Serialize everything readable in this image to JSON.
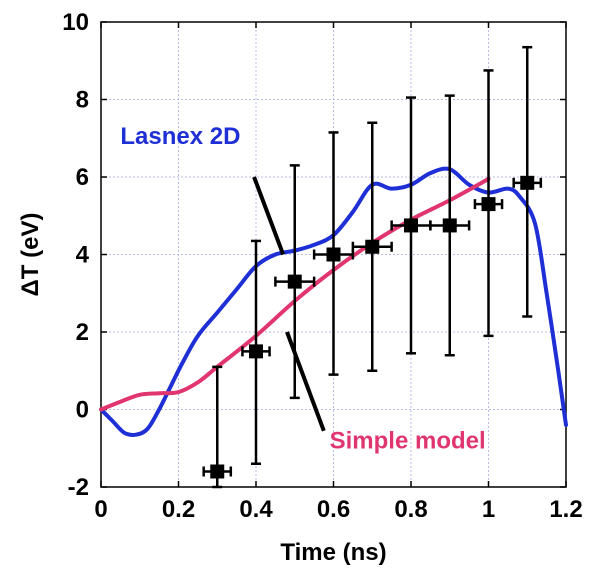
{
  "chart_data": {
    "type": "line",
    "xlabel": "Time (ns)",
    "ylabel": "ΔT (eV)",
    "xlim": [
      0,
      1.2
    ],
    "ylim": [
      -2,
      10
    ],
    "xticks": [
      0,
      0.2,
      0.4,
      0.6,
      0.8,
      1,
      1.2
    ],
    "xtick_labels": [
      "0",
      "0.2",
      "0.4",
      "0.6",
      "0.8",
      "1",
      "1.2"
    ],
    "yticks": [
      -2,
      0,
      2,
      4,
      6,
      8,
      10
    ],
    "ytick_labels": [
      "-2",
      "0",
      "2",
      "4",
      "6",
      "8",
      "10"
    ],
    "grid": true,
    "series": [
      {
        "name": "Lasnex 2D",
        "color": "#1f2fd6",
        "x": [
          0,
          0.03,
          0.06,
          0.09,
          0.12,
          0.15,
          0.18,
          0.21,
          0.25,
          0.3,
          0.35,
          0.4,
          0.45,
          0.5,
          0.55,
          0.6,
          0.65,
          0.7,
          0.75,
          0.8,
          0.85,
          0.9,
          0.95,
          1.0,
          1.05,
          1.08,
          1.12,
          1.15,
          1.18,
          1.2
        ],
        "y": [
          0,
          -0.3,
          -0.6,
          -0.65,
          -0.5,
          0.0,
          0.6,
          1.2,
          1.9,
          2.5,
          3.1,
          3.7,
          4.0,
          4.1,
          4.25,
          4.5,
          5.1,
          5.8,
          5.7,
          5.8,
          6.1,
          6.2,
          5.8,
          5.6,
          5.7,
          5.5,
          4.8,
          3.0,
          1.0,
          -0.4
        ]
      },
      {
        "name": "Simple model",
        "color": "#e0356e",
        "x": [
          0,
          0.05,
          0.1,
          0.15,
          0.2,
          0.25,
          0.3,
          0.4,
          0.5,
          0.6,
          0.7,
          0.8,
          0.9,
          1.0
        ],
        "y": [
          0,
          0.2,
          0.38,
          0.42,
          0.45,
          0.7,
          1.1,
          1.9,
          2.8,
          3.6,
          4.3,
          4.9,
          5.4,
          5.95
        ]
      },
      {
        "name": "",
        "color": "#000000",
        "marker": "square",
        "x": [
          0.3,
          0.4,
          0.5,
          0.6,
          0.7,
          0.8,
          0.9,
          1.0,
          1.1
        ],
        "y": [
          -1.6,
          1.5,
          3.3,
          4.0,
          4.2,
          4.75,
          4.75,
          5.3,
          5.85
        ],
        "y_low": [
          -2.0,
          -1.4,
          0.3,
          0.9,
          1.0,
          1.45,
          1.4,
          1.9,
          2.4
        ],
        "y_high": [
          1.1,
          4.35,
          6.3,
          7.15,
          7.4,
          8.05,
          8.1,
          8.75,
          9.35
        ],
        "x_err": [
          0.035,
          0.035,
          0.05,
          0.05,
          0.05,
          0.05,
          0.05,
          0.035,
          0.035
        ]
      }
    ],
    "annotations": [
      {
        "text": "Lasnex 2D",
        "color": "#1f2fd6",
        "x": 0.05,
        "y": 6.85,
        "pointer": [
          [
            0.395,
            6.0
          ],
          [
            0.47,
            4.0
          ]
        ]
      },
      {
        "text": "Simple model",
        "color": "#e0356e",
        "x": 0.59,
        "y": -1.0,
        "pointer": [
          [
            0.48,
            2.0
          ],
          [
            0.575,
            -0.55
          ]
        ]
      }
    ]
  }
}
